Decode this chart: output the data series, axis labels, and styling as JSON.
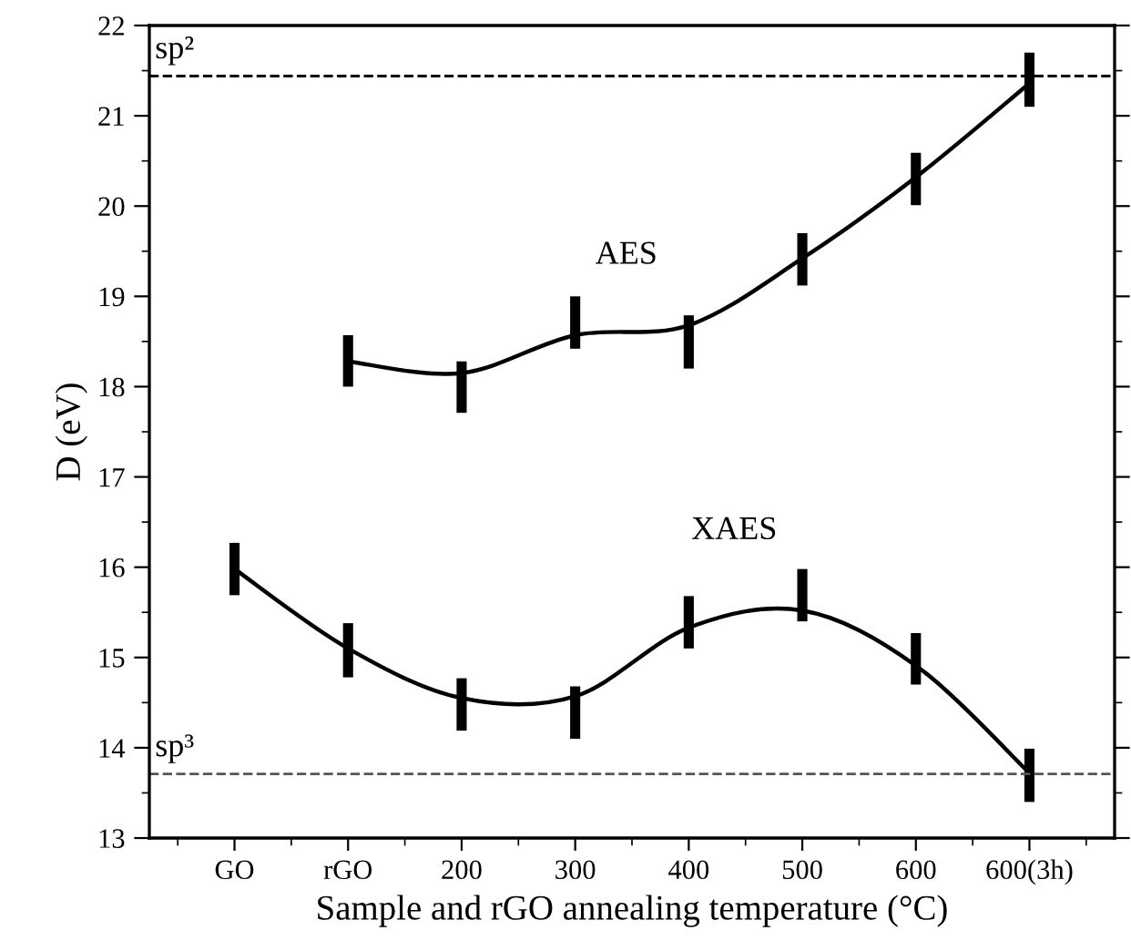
{
  "chart_data": {
    "type": "line",
    "xlabel": "Sample and rGO annealing temperature (°C)",
    "ylabel": "D (eV)",
    "categories": [
      "GO",
      "rGO",
      "200",
      "300",
      "400",
      "500",
      "600",
      "600(3h)"
    ],
    "series": [
      {
        "name": "AES",
        "color": "#000000",
        "values": [
          null,
          18.28,
          18.15,
          18.57,
          18.68,
          19.42,
          20.32,
          21.36
        ],
        "errors": [
          null,
          [
            18.0,
            18.57
          ],
          [
            17.71,
            18.28
          ],
          [
            18.42,
            19.0
          ],
          [
            18.2,
            18.79
          ],
          [
            19.12,
            19.7
          ],
          [
            20.01,
            20.59
          ],
          [
            21.1,
            21.7
          ]
        ]
      },
      {
        "name": "XAES",
        "color": "#000000",
        "values": [
          15.98,
          15.1,
          14.55,
          14.57,
          15.33,
          15.52,
          14.91,
          13.72
        ],
        "errors": [
          [
            15.69,
            16.27
          ],
          [
            14.78,
            15.38
          ],
          [
            14.19,
            14.77
          ],
          [
            14.1,
            14.68
          ],
          [
            15.1,
            15.68
          ],
          [
            15.4,
            15.98
          ],
          [
            14.7,
            15.27
          ],
          [
            13.4,
            13.99
          ]
        ]
      }
    ],
    "ylim": [
      13,
      22
    ],
    "yticks": [
      13,
      14,
      15,
      16,
      17,
      18,
      19,
      20,
      21,
      22
    ],
    "ref_lines": [
      {
        "axis": "y",
        "value": 21.44,
        "label": "sp²",
        "color": "#000000",
        "line_style": "dashed"
      },
      {
        "axis": "y",
        "value": 13.71,
        "label": "sp³",
        "color": "#555555",
        "line_style": "dashed"
      }
    ],
    "marker": "none",
    "line_style": "solid",
    "grid": false,
    "legend": false
  }
}
